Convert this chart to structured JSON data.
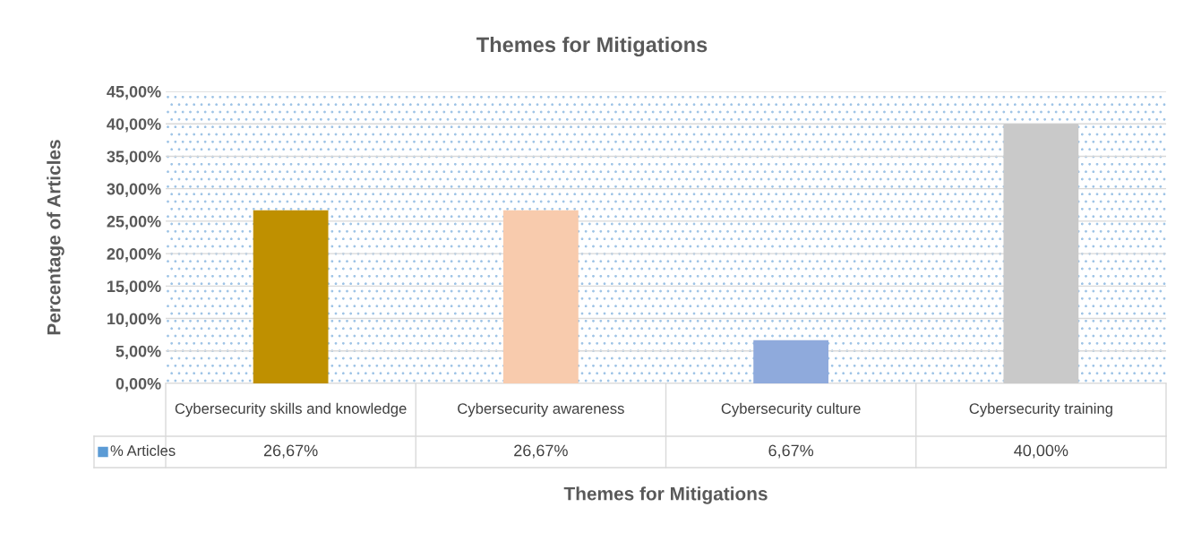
{
  "chart_data": {
    "type": "bar",
    "title": "Themes for Mitigations",
    "xlabel": "Themes for Mitigations",
    "ylabel": "Percentage of Articles",
    "categories": [
      "Cybersecurity skills and knowledge",
      "Cybersecurity awareness",
      "Cybersecurity culture",
      "Cybersecurity training"
    ],
    "series": [
      {
        "name": "% Articles",
        "color": "#5b9bd5",
        "colors": [
          "#bf9000",
          "#f8cbad",
          "#8faadc",
          "#c9c9c9"
        ],
        "values": [
          26.67,
          26.67,
          6.67,
          40.0
        ],
        "value_labels": [
          "26,67%",
          "26,67%",
          "6,67%",
          "40,00%"
        ]
      }
    ],
    "ylim": [
      0,
      45
    ],
    "yticks": [
      {
        "value": 0,
        "label": "0,00%"
      },
      {
        "value": 5,
        "label": "5,00%"
      },
      {
        "value": 10,
        "label": "10,00%"
      },
      {
        "value": 15,
        "label": "15,00%"
      },
      {
        "value": 20,
        "label": "20,00%"
      },
      {
        "value": 25,
        "label": "25,00%"
      },
      {
        "value": 30,
        "label": "30,00%"
      },
      {
        "value": 35,
        "label": "35,00%"
      },
      {
        "value": 40,
        "label": "40,00%"
      },
      {
        "value": 45,
        "label": "45,00%"
      }
    ],
    "grid": "y"
  }
}
